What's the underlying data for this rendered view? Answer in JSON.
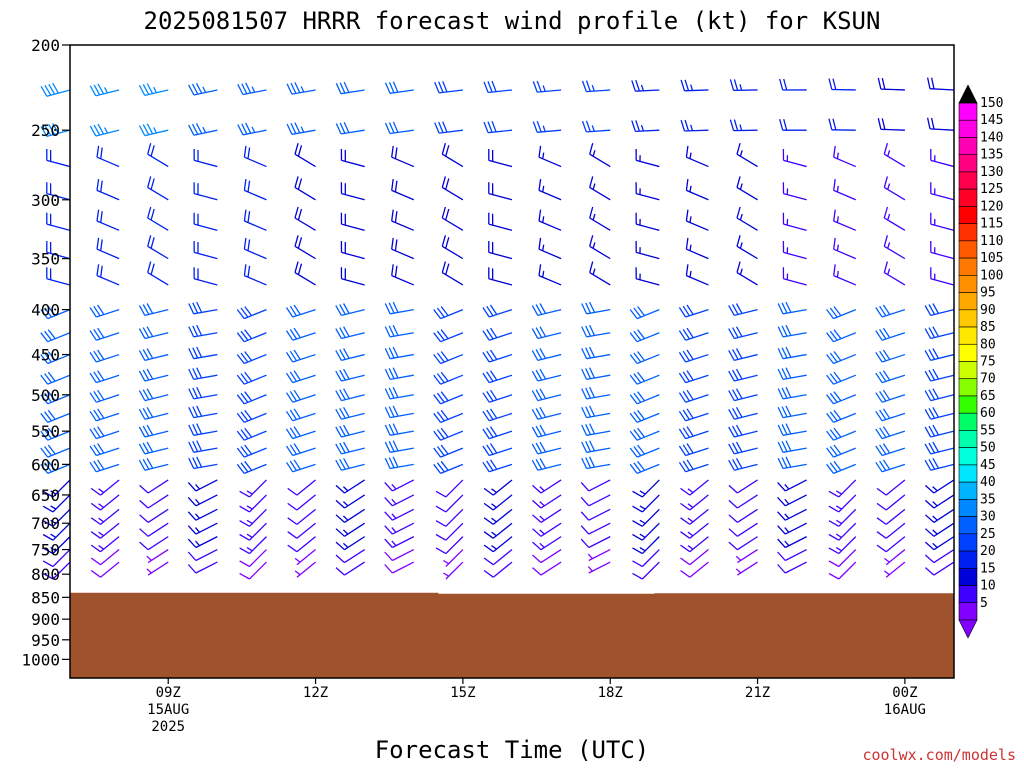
{
  "title": "2025081507 HRRR forecast wind profile (kt) for KSUN",
  "xlabel": "Forecast Time (UTC)",
  "credit": "coolwx.com/models",
  "y_ticks": [
    "200",
    "250",
    "300",
    "350",
    "400",
    "450",
    "500",
    "550",
    "600",
    "650",
    "700",
    "750",
    "800",
    "850",
    "900",
    "950",
    "1000"
  ],
  "x_ticks": [
    {
      "lines": [
        "09Z",
        "15AUG",
        "2025"
      ]
    },
    {
      "lines": [
        "12Z"
      ]
    },
    {
      "lines": [
        "15Z"
      ]
    },
    {
      "lines": [
        "18Z"
      ]
    },
    {
      "lines": [
        "21Z"
      ]
    },
    {
      "lines": [
        "00Z",
        "16AUG"
      ]
    }
  ],
  "colorbar": {
    "labels": [
      "150",
      "145",
      "140",
      "135",
      "130",
      "125",
      "120",
      "115",
      "110",
      "105",
      "100",
      "95",
      "90",
      "85",
      "80",
      "75",
      "70",
      "65",
      "60",
      "55",
      "50",
      "45",
      "40",
      "35",
      "30",
      "25",
      "20",
      "15",
      "10",
      "5"
    ],
    "colors": [
      "#ff00ff",
      "#ff00e6",
      "#ff00b4",
      "#ff0080",
      "#ff004c",
      "#ff0026",
      "#ff0000",
      "#ff3000",
      "#ff5a00",
      "#ff7800",
      "#ff9000",
      "#ffa800",
      "#ffc800",
      "#ffe800",
      "#ffff00",
      "#ccff00",
      "#88ff00",
      "#33ff00",
      "#00ff66",
      "#00ffaa",
      "#00ffdd",
      "#00e6ff",
      "#00b4ff",
      "#0088ff",
      "#0060ff",
      "#0040ff",
      "#0020f0",
      "#0000d8",
      "#4000ff",
      "#8000ff"
    ]
  },
  "chart_data": {
    "type": "wind-barb time-height profile",
    "title": "2025081507 HRRR forecast wind profile (kt) for KSUN",
    "xlabel": "Forecast Time (UTC)",
    "ylabel": "",
    "y_axis": "pressure (hPa), log scale, inverted",
    "ylim": [
      200,
      1050
    ],
    "x_range_hours_utc": [
      "2025-08-15 07Z",
      "2025-08-16 01Z"
    ],
    "x_tick_labels": [
      "09Z 15AUG 2025",
      "12Z",
      "15Z",
      "18Z",
      "21Z",
      "00Z 16AUG"
    ],
    "ground_color": "#a0522d",
    "surface_pressure_by_time": [
      {
        "time": "07Z",
        "hPa": 840
      },
      {
        "time": "15Z",
        "hPa": 842
      },
      {
        "time": "19Z",
        "hPa": 841
      },
      {
        "time": "01Z",
        "hPa": 840
      }
    ],
    "levels": [
      775,
      750,
      725,
      700,
      675,
      650,
      625,
      600,
      575,
      550,
      525,
      500,
      475,
      450,
      425,
      400,
      375,
      350,
      325,
      300,
      275,
      250,
      225
    ],
    "times": [
      "07Z",
      "08Z",
      "09Z",
      "10Z",
      "11Z",
      "12Z",
      "13Z",
      "14Z",
      "15Z",
      "16Z",
      "17Z",
      "18Z",
      "19Z",
      "20Z",
      "21Z",
      "22Z",
      "23Z",
      "00Z",
      "01Z"
    ],
    "wind_description": [
      {
        "layer": "225-250 hPa",
        "speed_kt": "20-40",
        "direction": "westerly to west-southwesterly"
      },
      {
        "layer": "275-375 hPa",
        "speed_kt": "10-30",
        "direction": "westerly to northwesterly"
      },
      {
        "layer": "400-600 hPa",
        "speed_kt": "20-35",
        "direction": "west-southwesterly"
      },
      {
        "layer": "625-775 hPa",
        "speed_kt": "5-20",
        "direction": "southwesterly"
      }
    ],
    "colorbar_kt": {
      "min": 5,
      "max": 150,
      "step": 5
    }
  }
}
